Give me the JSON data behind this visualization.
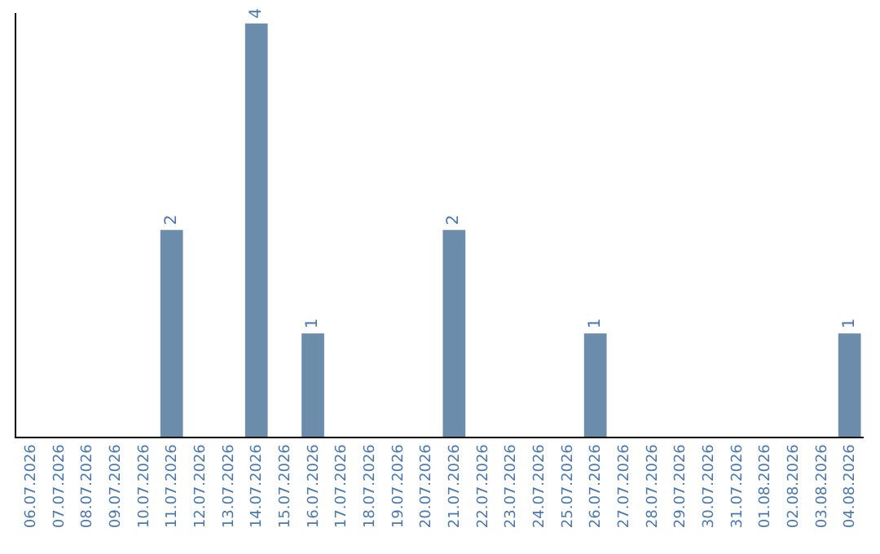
{
  "chart_data": {
    "type": "bar",
    "categories": [
      "06.07.2026",
      "07.07.2026",
      "08.07.2026",
      "09.07.2026",
      "10.07.2026",
      "11.07.2026",
      "12.07.2026",
      "13.07.2026",
      "14.07.2026",
      "15.07.2026",
      "16.07.2026",
      "17.07.2026",
      "18.07.2026",
      "19.07.2026",
      "20.07.2026",
      "21.07.2026",
      "22.07.2026",
      "23.07.2026",
      "24.07.2026",
      "25.07.2026",
      "26.07.2026",
      "27.07.2026",
      "28.07.2026",
      "29.07.2026",
      "30.07.2026",
      "31.07.2026",
      "01.08.2026",
      "02.08.2026",
      "03.08.2026",
      "04.08.2026"
    ],
    "values": [
      0,
      0,
      0,
      0,
      0,
      2,
      0,
      0,
      4,
      0,
      1,
      0,
      0,
      0,
      0,
      2,
      0,
      0,
      0,
      0,
      1,
      0,
      0,
      0,
      0,
      0,
      0,
      0,
      0,
      1
    ],
    "value_labels": [
      null,
      null,
      null,
      null,
      null,
      "2",
      null,
      null,
      "4",
      null,
      "1",
      null,
      null,
      null,
      null,
      "2",
      null,
      null,
      null,
      null,
      "1",
      null,
      null,
      null,
      null,
      null,
      null,
      null,
      null,
      "1"
    ],
    "color": "#6b8cab",
    "ylim": [
      0,
      4.1
    ],
    "tick_labels": "x",
    "legend": false
  }
}
